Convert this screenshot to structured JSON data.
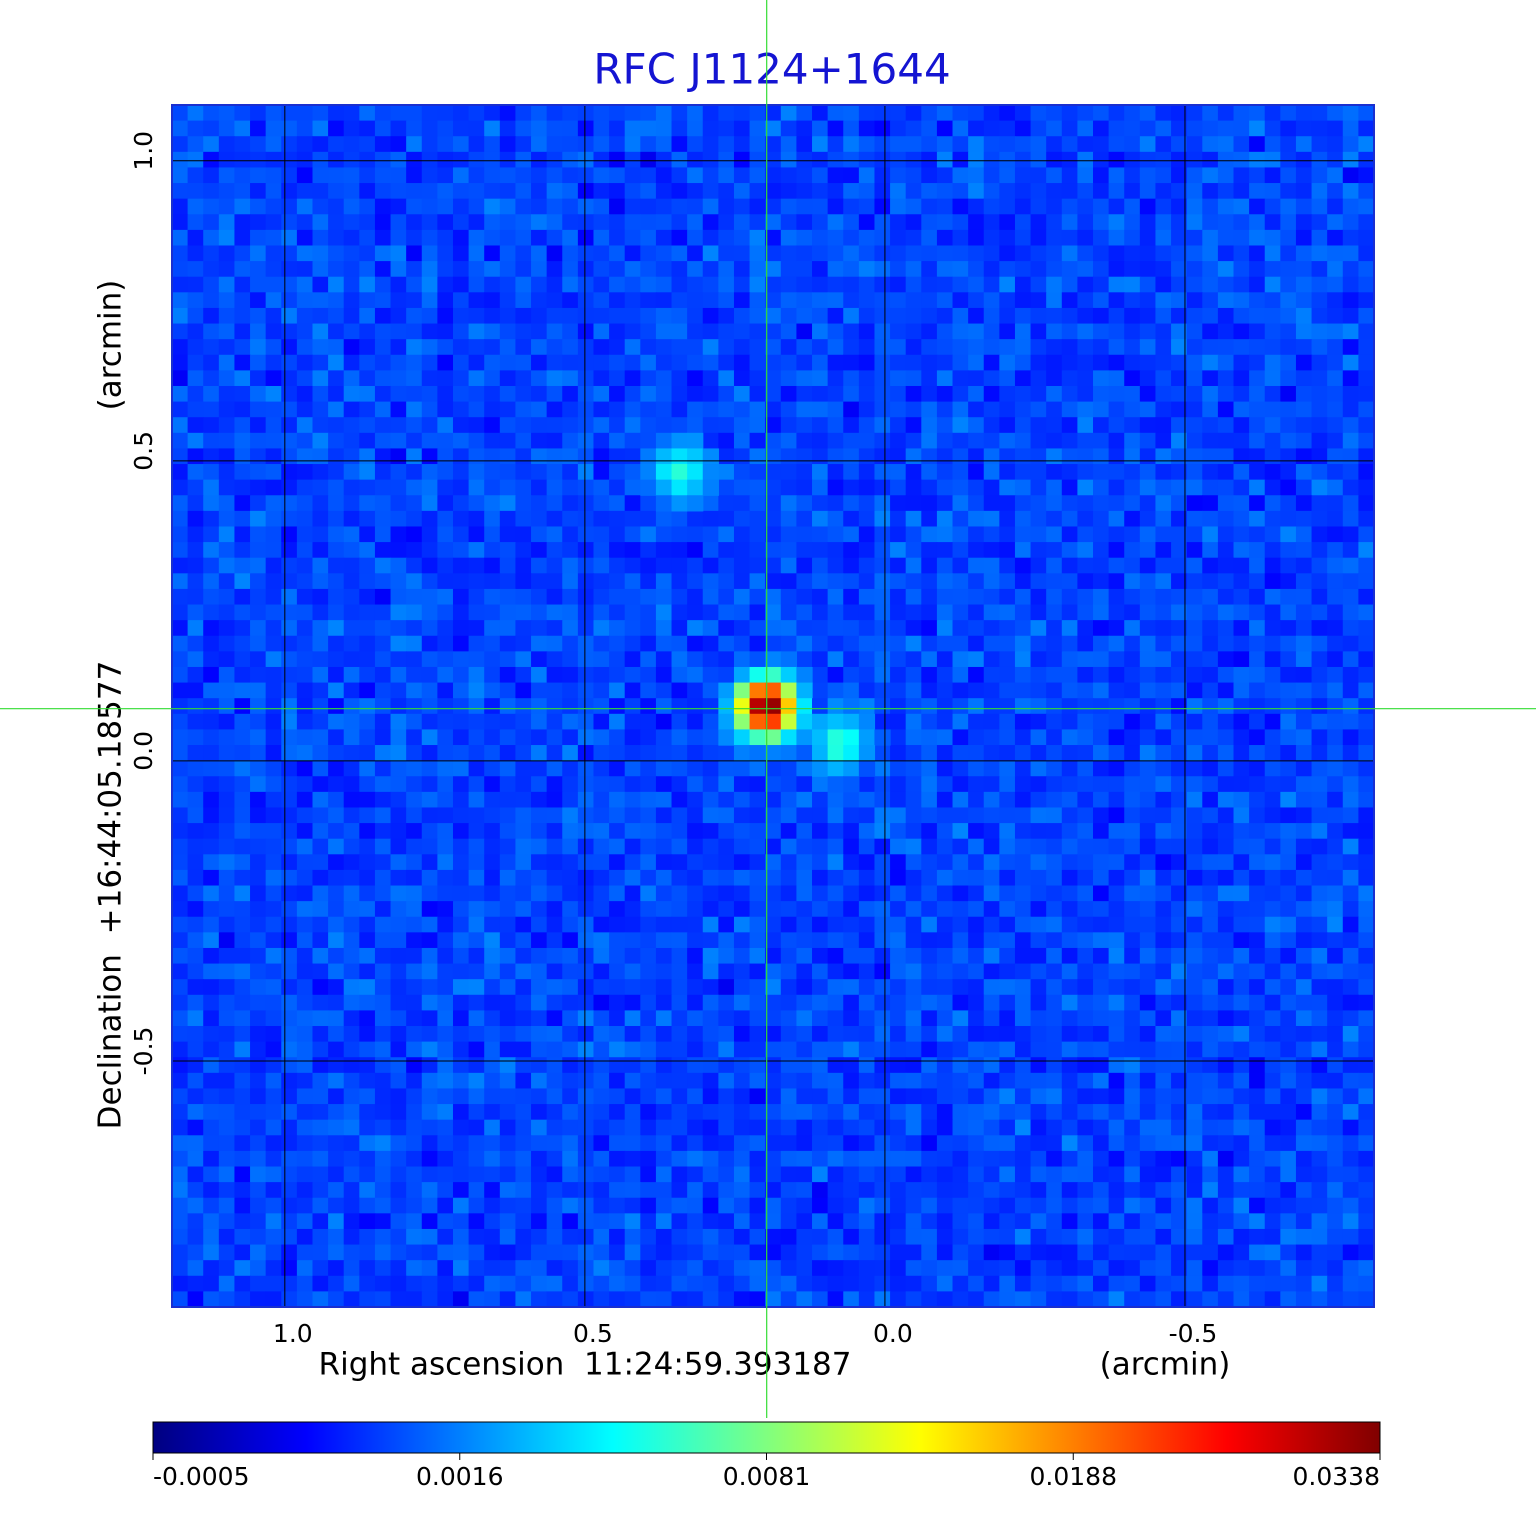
{
  "chart_data": {
    "type": "heatmap",
    "title": "RFC J1124+1644",
    "x_label": "Right ascension  11:24:59.393187",
    "x_unit": "(arcmin)",
    "y_label": "Declination  +16:44:05.18577",
    "y_unit": "(arcmin)",
    "xlim": [
      1.188,
      -0.815
    ],
    "ylim": [
      -0.91,
      1.093
    ],
    "xticks": [
      {
        "value": 1,
        "label": "1.0"
      },
      0.5,
      {
        "value": 0,
        "label": "0.0"
      },
      -0.5
    ],
    "yticks": [
      -0.5,
      {
        "value": 0,
        "label": "0.0"
      },
      0.5,
      {
        "value": 1,
        "label": "1.0"
      }
    ],
    "grid": true,
    "colormap": "jet",
    "colorbar": {
      "ticks": [
        -0.0005,
        0.0016,
        0.0081,
        0.0188,
        0.0338
      ]
    },
    "sources": [
      {
        "x": 0.197,
        "y": 0.09,
        "peak": 0.0338
      },
      {
        "x": 0.34,
        "y": 0.483,
        "peak": 0.0048
      },
      {
        "x": 0.075,
        "y": 0.03,
        "peak": 0.0052
      }
    ],
    "crosshair": {
      "x": 0.197,
      "y": 0.087,
      "color": "#33dd33"
    }
  }
}
